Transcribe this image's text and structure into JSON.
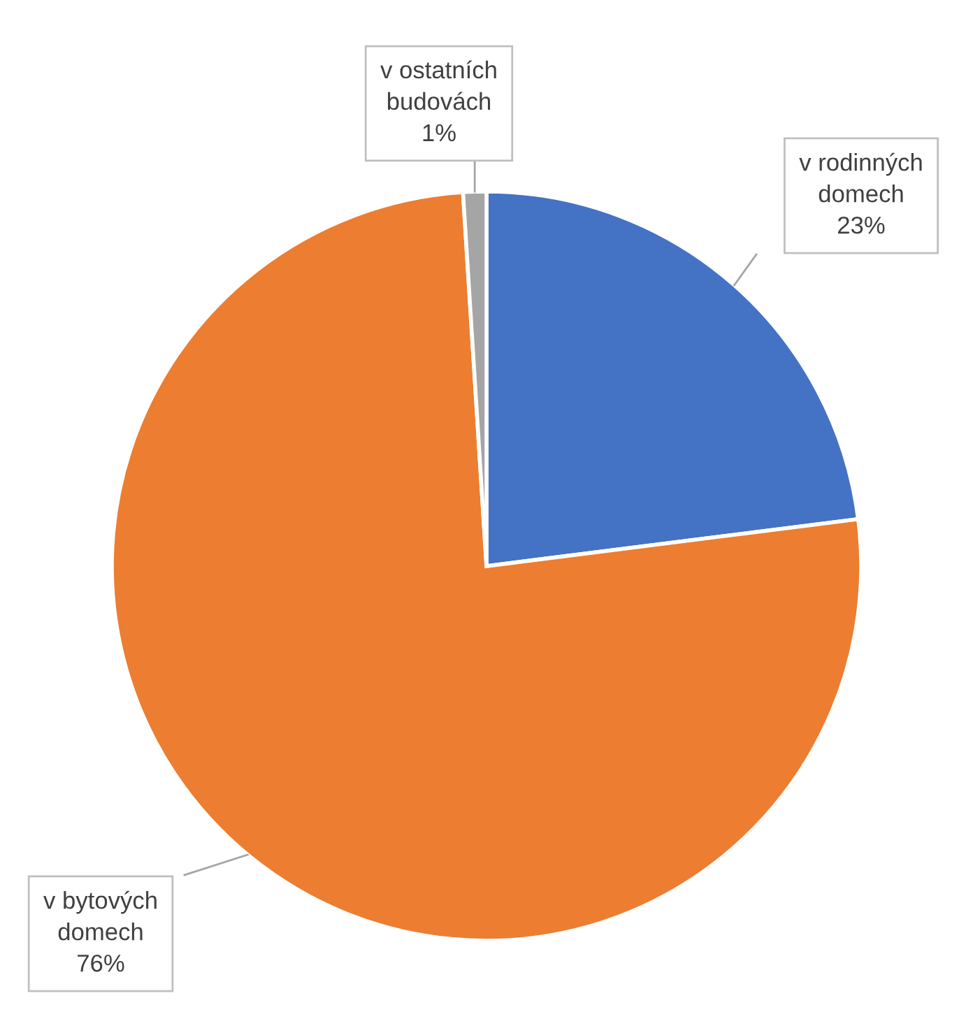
{
  "chart_data": {
    "type": "pie",
    "categories": [
      "v rodinných domech",
      "v bytových domech",
      "v ostatních budovách"
    ],
    "values": [
      23,
      76,
      1
    ],
    "colors": [
      "#4472c4",
      "#ed7d31",
      "#a5a5a5"
    ],
    "value_labels": [
      "23%",
      "76%",
      "1%"
    ]
  }
}
